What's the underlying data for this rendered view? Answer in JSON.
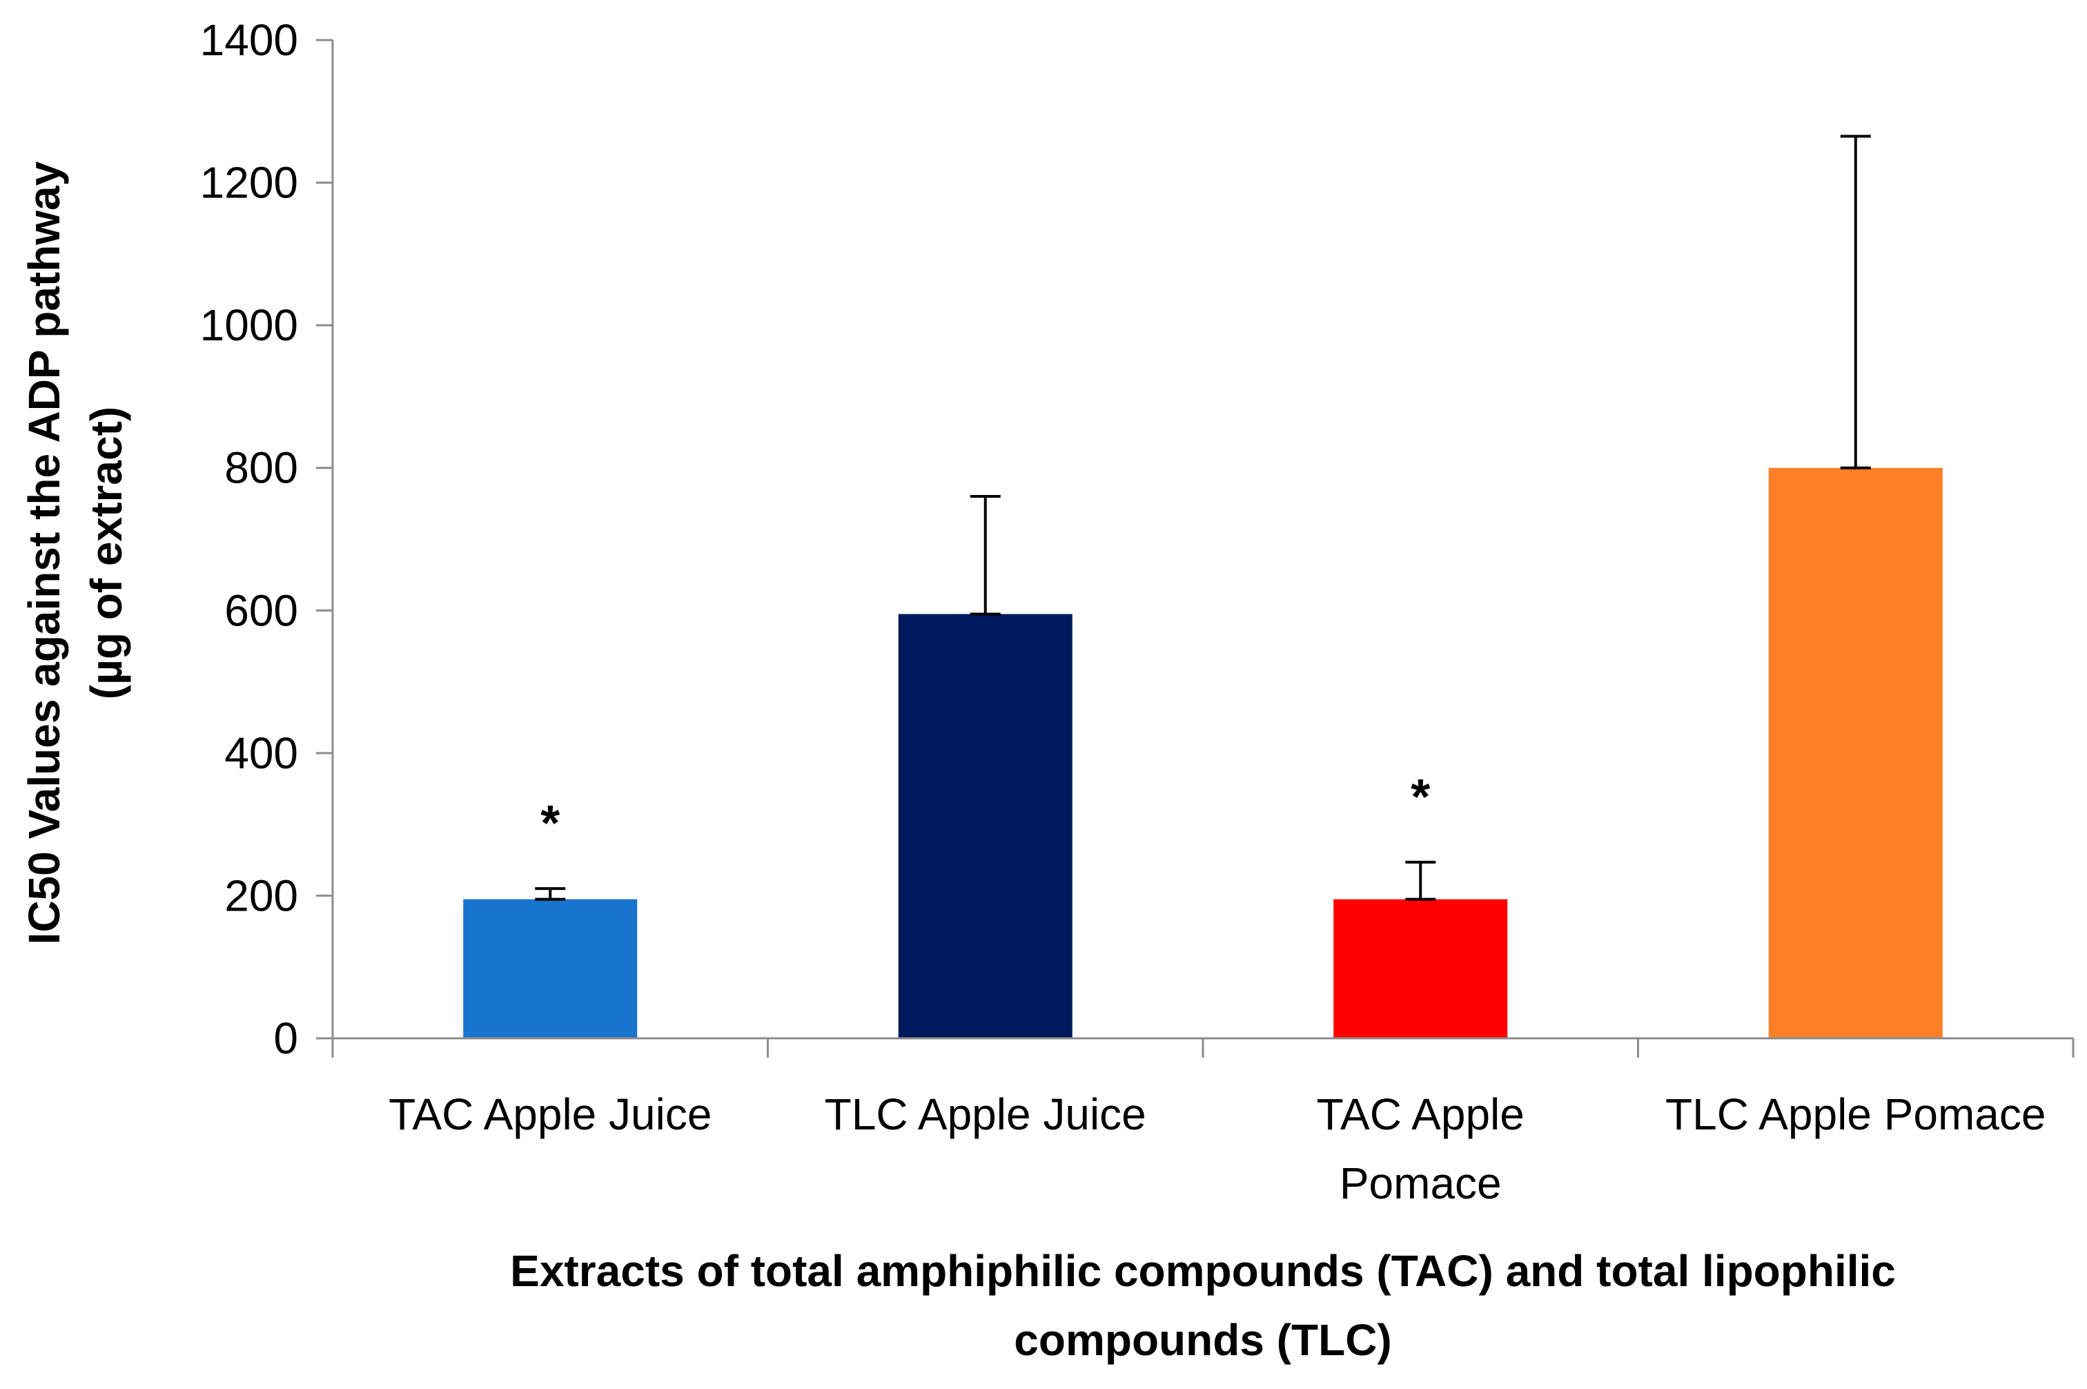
{
  "chart_data": {
    "type": "bar",
    "categories": [
      [
        "TAC Apple Juice"
      ],
      [
        "TLC Apple Juice"
      ],
      [
        "TAC Apple",
        "Pomace"
      ],
      [
        "TLC Apple Pomace"
      ]
    ],
    "values": [
      195,
      595,
      195,
      800
    ],
    "error_plus": [
      15,
      165,
      52,
      465
    ],
    "significance": [
      "*",
      "",
      "*",
      ""
    ],
    "colors": [
      "#1874cd",
      "#001a5e",
      "#ff0000",
      "#ff7f27"
    ],
    "ylabel": [
      "IC50 Values against the ADP pathway",
      "(µg of extract)"
    ],
    "xlabel": [
      "Extracts of total amphiphilic compounds (TAC) and total lipophilic",
      "compounds (TLC)"
    ],
    "ylim": [
      0,
      1400
    ],
    "yticks": [
      0,
      200,
      400,
      600,
      800,
      1000,
      1200,
      1400
    ],
    "grid": false,
    "legend": "none",
    "axis_color": "#8c8c8c",
    "error_bar_color": "#000000"
  }
}
